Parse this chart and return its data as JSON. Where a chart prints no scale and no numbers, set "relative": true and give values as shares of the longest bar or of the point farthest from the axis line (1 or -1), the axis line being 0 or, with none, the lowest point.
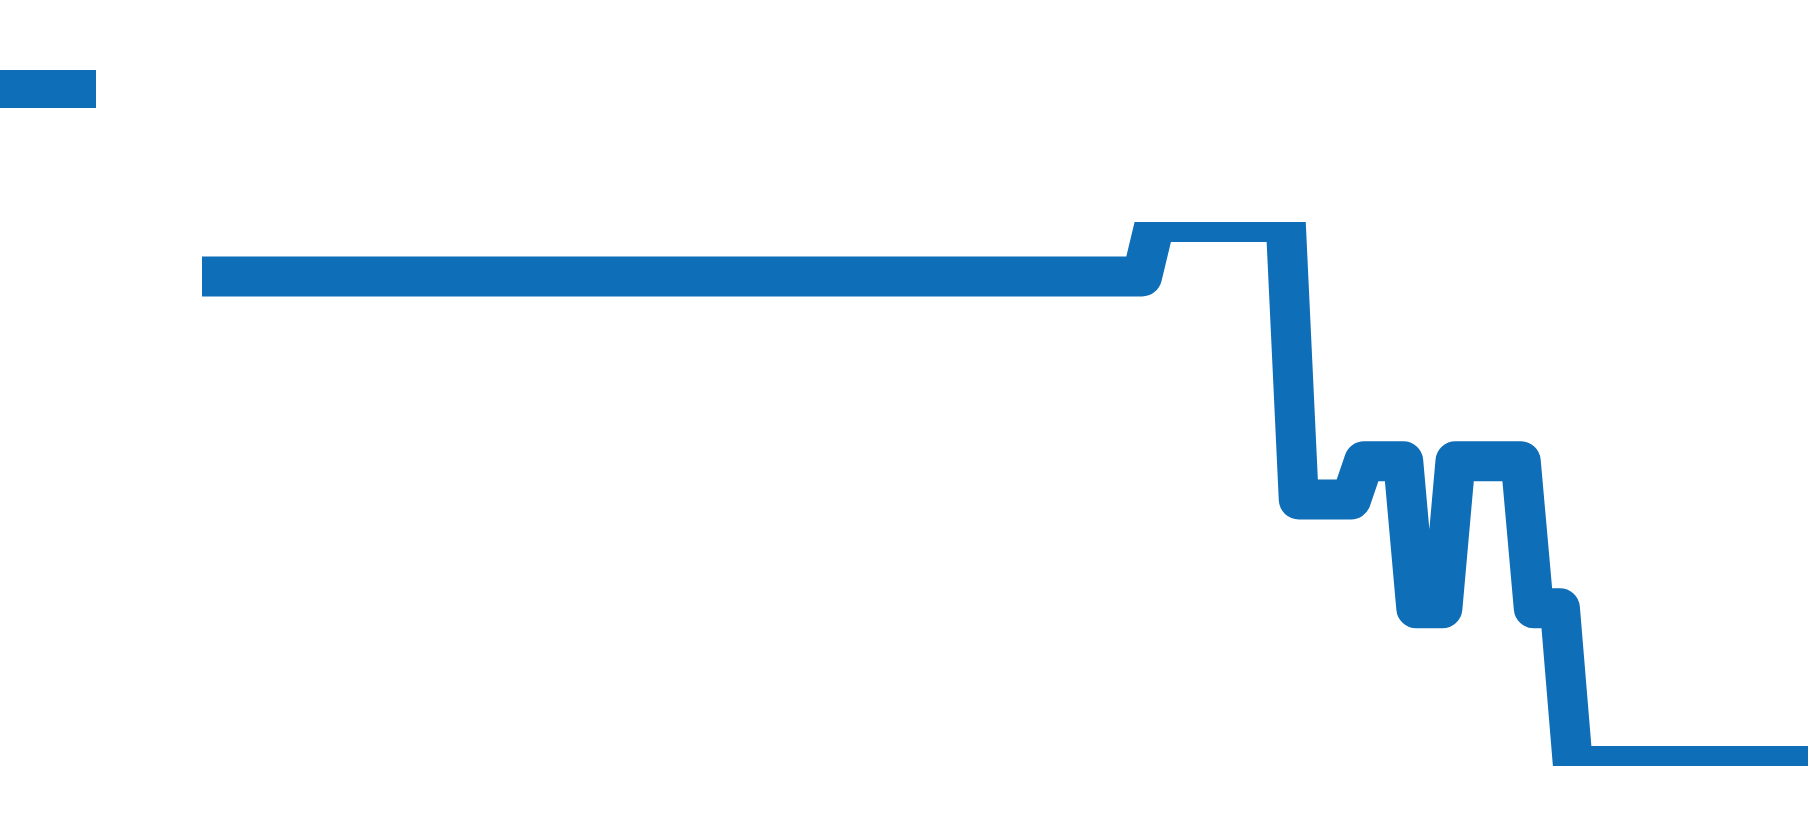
{
  "chart_data": {
    "type": "line",
    "relative": true,
    "color": "#0f6eb8",
    "line_style": "solid",
    "categories": [
      null,
      null,
      null,
      null,
      null,
      null,
      null,
      null,
      null,
      null,
      null,
      null,
      null,
      null,
      null,
      null,
      null,
      null,
      null,
      null,
      null,
      null,
      null,
      null,
      null,
      null,
      null,
      null,
      null,
      null,
      null,
      null,
      null,
      null,
      null,
      null,
      null,
      null,
      null,
      null,
      null,
      null,
      null,
      null,
      null,
      null,
      null,
      null,
      null,
      null,
      null,
      null,
      null,
      null,
      null,
      null,
      null,
      null,
      null,
      null,
      null,
      null,
      null,
      null,
      null,
      null,
      null,
      null,
      null,
      null,
      null,
      null,
      null,
      null,
      null,
      null,
      null,
      null,
      null,
      null,
      null,
      null,
      null,
      null,
      null,
      null,
      null,
      null,
      null,
      null,
      null,
      null,
      null,
      null,
      null,
      null,
      null,
      null,
      null,
      null,
      null,
      null,
      null,
      null,
      null,
      null,
      null,
      null,
      null,
      null,
      null,
      null,
      null,
      null,
      null,
      null,
      null,
      null,
      null,
      null,
      null,
      null,
      null,
      null
    ],
    "values": [
      0.9,
      0.9,
      0.9,
      0.9,
      0.9,
      0.9,
      0.9,
      0.9,
      0.9,
      0.9,
      0.9,
      0.9,
      0.9,
      0.9,
      0.9,
      0.9,
      0.9,
      0.9,
      0.9,
      0.9,
      0.9,
      0.9,
      0.9,
      0.9,
      0.9,
      0.9,
      0.9,
      0.9,
      0.9,
      0.9,
      0.9,
      0.9,
      0.9,
      0.9,
      0.9,
      0.9,
      0.9,
      0.9,
      0.9,
      0.9,
      0.9,
      0.9,
      0.9,
      0.9,
      0.9,
      0.9,
      0.9,
      0.9,
      0.9,
      0.9,
      0.9,
      0.9,
      0.9,
      0.9,
      0.9,
      0.9,
      0.9,
      0.9,
      0.9,
      0.9,
      0.9,
      0.9,
      0.9,
      0.9,
      0.9,
      0.9,
      0.9,
      0.9,
      0.9,
      0.9,
      0.9,
      0.9,
      0.9,
      1,
      1,
      1,
      1,
      1,
      1,
      1,
      1,
      1,
      1,
      1,
      0.49,
      0.49,
      0.49,
      0.49,
      0.49,
      0.56,
      0.56,
      0.56,
      0.56,
      0.29,
      0.29,
      0.29,
      0.56,
      0.56,
      0.56,
      0.56,
      0.56,
      0.56,
      0.29,
      0.29,
      0.29,
      0,
      0,
      0,
      0,
      0,
      0,
      0,
      0,
      0,
      0,
      0,
      0,
      0,
      0,
      0,
      0,
      0,
      0,
      0
    ]
  }
}
